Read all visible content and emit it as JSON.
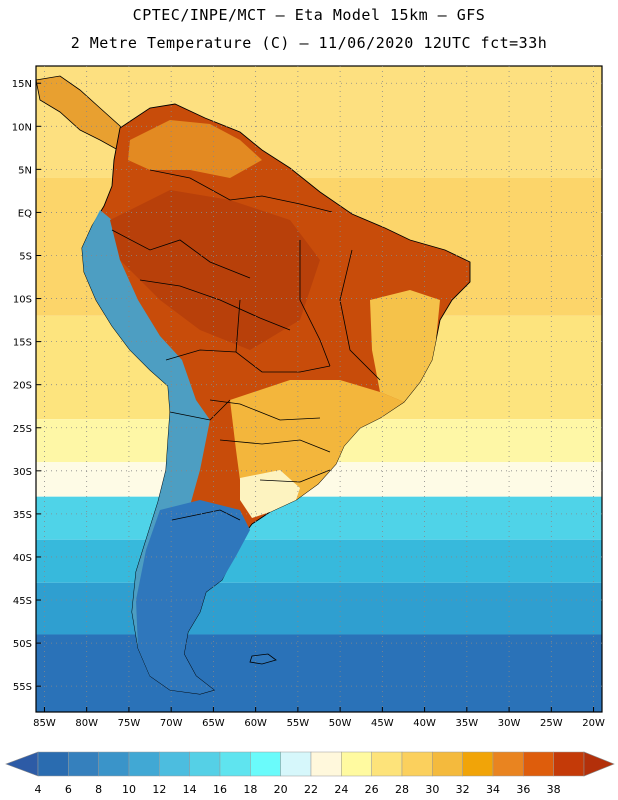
{
  "header": {
    "line1": "CPTEC/INPE/MCT –  Eta Model 15km – GFS",
    "line2": "2 Metre Temperature (C) – 11/06/2020 12UTC fct=33h"
  },
  "map": {
    "lon_range": [
      -86,
      -19
    ],
    "lat_range": [
      -58,
      17
    ],
    "lon_ticks": [
      {
        "value": -85,
        "label": "85W"
      },
      {
        "value": -80,
        "label": "80W"
      },
      {
        "value": -75,
        "label": "75W"
      },
      {
        "value": -70,
        "label": "70W"
      },
      {
        "value": -65,
        "label": "65W"
      },
      {
        "value": -60,
        "label": "60W"
      },
      {
        "value": -55,
        "label": "55W"
      },
      {
        "value": -50,
        "label": "50W"
      },
      {
        "value": -45,
        "label": "45W"
      },
      {
        "value": -40,
        "label": "40W"
      },
      {
        "value": -35,
        "label": "35W"
      },
      {
        "value": -30,
        "label": "30W"
      },
      {
        "value": -25,
        "label": "25W"
      },
      {
        "value": -20,
        "label": "20W"
      }
    ],
    "lat_ticks": [
      {
        "value": 15,
        "label": "15N"
      },
      {
        "value": 10,
        "label": "10N"
      },
      {
        "value": 5,
        "label": "5N"
      },
      {
        "value": 0,
        "label": "EQ"
      },
      {
        "value": -5,
        "label": "5S"
      },
      {
        "value": -10,
        "label": "10S"
      },
      {
        "value": -15,
        "label": "15S"
      },
      {
        "value": -20,
        "label": "20S"
      },
      {
        "value": -25,
        "label": "25S"
      },
      {
        "value": -30,
        "label": "30S"
      },
      {
        "value": -35,
        "label": "35S"
      },
      {
        "value": -40,
        "label": "40S"
      },
      {
        "value": -45,
        "label": "45S"
      },
      {
        "value": -50,
        "label": "50S"
      },
      {
        "value": -55,
        "label": "55S"
      }
    ],
    "ocean_bands": [
      {
        "lat_top": 17,
        "lat_bottom": 4,
        "color": "#fde080"
      },
      {
        "lat_top": 4,
        "lat_bottom": -12,
        "color": "#fcd56a"
      },
      {
        "lat_top": -12,
        "lat_bottom": -24,
        "color": "#fde47e"
      },
      {
        "lat_top": -24,
        "lat_bottom": -29,
        "color": "#fef7a6"
      },
      {
        "lat_top": -29,
        "lat_bottom": -33,
        "color": "#fefbe6"
      },
      {
        "lat_top": -33,
        "lat_bottom": -38,
        "color": "#4fd3e8"
      },
      {
        "lat_top": -38,
        "lat_bottom": -43,
        "color": "#37b9dc"
      },
      {
        "lat_top": -43,
        "lat_bottom": -49,
        "color": "#2f9fd0"
      },
      {
        "lat_top": -49,
        "lat_bottom": -58,
        "color": "#2a72b8"
      }
    ],
    "continent_color": "#c84c0a",
    "andes_color": "#4aa8d8",
    "south_land_color": "#2f7cc0"
  },
  "colorbar": {
    "labels": [
      "4",
      "6",
      "8",
      "10",
      "12",
      "14",
      "16",
      "18",
      "20",
      "22",
      "24",
      "26",
      "28",
      "30",
      "32",
      "34",
      "36",
      "38"
    ],
    "colors": [
      "#2a6cb0",
      "#3580bd",
      "#3a94c9",
      "#41a8d4",
      "#4cbddf",
      "#55d0e6",
      "#5fe4ef",
      "#6afbfb",
      "#d6f7fb",
      "#fff8dc",
      "#fffaa0",
      "#fde37a",
      "#fbd05d",
      "#f4ba3d",
      "#f1a408",
      "#e98420",
      "#de5d0c",
      "#c43a08"
    ],
    "under_color": "#2d5ba6",
    "over_color": "#b3300a"
  }
}
